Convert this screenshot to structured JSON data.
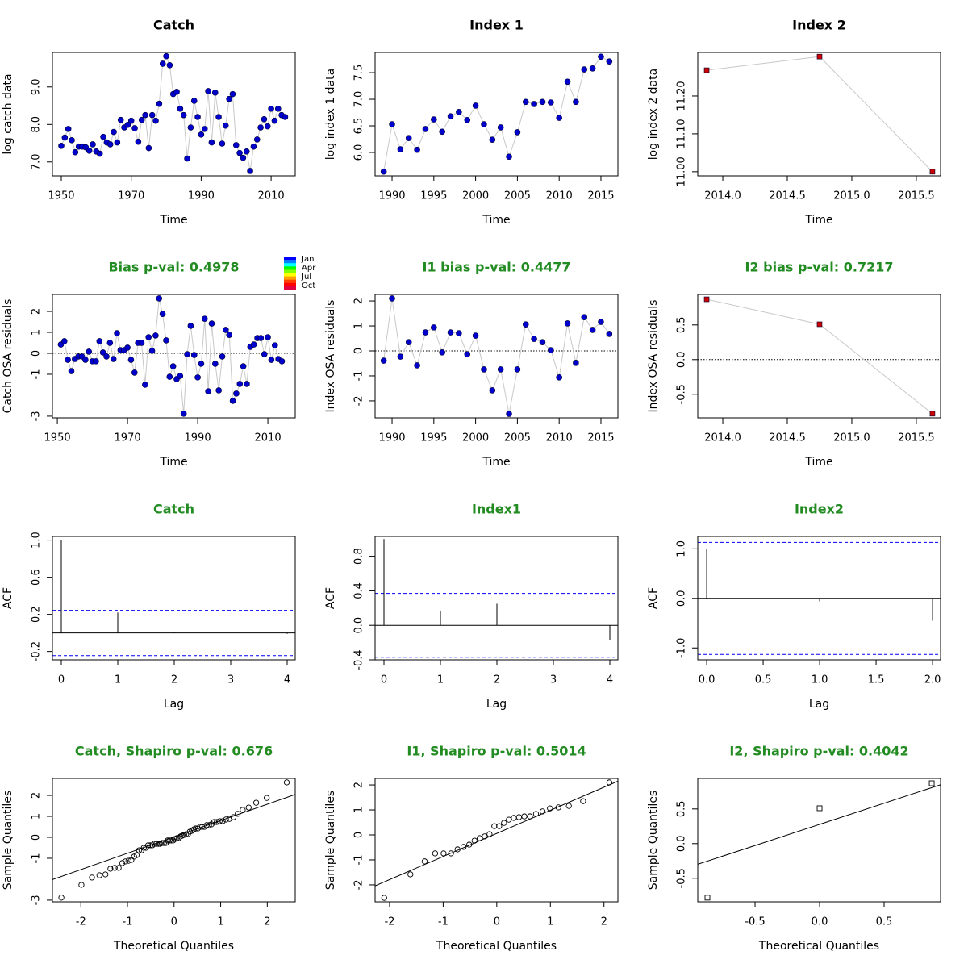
{
  "chart_data": [
    {
      "type": "line",
      "title": "Catch",
      "title_color": "#000000",
      "xlabel": "Time",
      "ylabel": "log catch data",
      "marker": "circle-filled",
      "color": "#0000cc",
      "line_color": "#c8c8c8",
      "x": [
        1950,
        1951,
        1952,
        1953,
        1954,
        1955,
        1956,
        1957,
        1958,
        1959,
        1960,
        1961,
        1962,
        1963,
        1964,
        1965,
        1966,
        1967,
        1968,
        1969,
        1970,
        1971,
        1972,
        1973,
        1974,
        1975,
        1976,
        1977,
        1978,
        1979,
        1980,
        1981,
        1982,
        1983,
        1984,
        1985,
        1986,
        1987,
        1988,
        1989,
        1990,
        1991,
        1992,
        1993,
        1994,
        1995,
        1996,
        1997,
        1998,
        1999,
        2000,
        2001,
        2002,
        2003,
        2004,
        2005,
        2006,
        2007,
        2008,
        2009,
        2010,
        2011,
        2012,
        2013,
        2014
      ],
      "values": [
        7.43,
        7.65,
        7.88,
        7.58,
        7.26,
        7.41,
        7.41,
        7.39,
        7.3,
        7.47,
        7.28,
        7.22,
        7.67,
        7.52,
        7.47,
        7.8,
        7.52,
        8.12,
        7.92,
        7.99,
        8.1,
        7.9,
        7.54,
        8.12,
        8.25,
        7.37,
        8.25,
        8.1,
        8.55,
        9.62,
        9.82,
        9.58,
        8.81,
        8.87,
        8.42,
        8.25,
        7.09,
        7.92,
        8.63,
        8.2,
        7.73,
        7.88,
        8.89,
        7.52,
        8.85,
        8.2,
        7.49,
        7.97,
        8.68,
        8.81,
        7.45,
        7.24,
        7.11,
        7.28,
        6.76,
        7.41,
        7.6,
        7.92,
        8.14,
        7.95,
        8.42,
        8.1,
        8.42,
        8.25,
        8.2
      ],
      "xlim": [
        1947.46,
        2016.9
      ],
      "ylim": [
        6.63,
        9.92
      ],
      "xticks": [
        1950,
        1970,
        1990,
        2010
      ],
      "yticks": [
        {
          "value": 7,
          "label": "7.0"
        },
        {
          "value": 8,
          "label": "8.0"
        },
        {
          "value": 9,
          "label": "9.0"
        }
      ]
    },
    {
      "type": "line",
      "title": "Index 1",
      "title_color": "#000000",
      "xlabel": "Time",
      "ylabel": "log index 1 data",
      "marker": "circle-filled",
      "color": "#0000cc",
      "line_color": "#c8c8c8",
      "x": [
        1989,
        1990,
        1991,
        1992,
        1993,
        1994,
        1995,
        1996,
        1997,
        1998,
        1999,
        2000,
        2001,
        2002,
        2003,
        2004,
        2005,
        2006,
        2007,
        2008,
        2009,
        2010,
        2011,
        2012,
        2013,
        2014,
        2015,
        2016
      ],
      "values": [
        5.64,
        6.53,
        6.06,
        6.27,
        6.05,
        6.44,
        6.62,
        6.39,
        6.68,
        6.76,
        6.61,
        6.88,
        6.53,
        6.24,
        6.47,
        5.92,
        6.38,
        6.95,
        6.91,
        6.95,
        6.94,
        6.65,
        7.33,
        6.95,
        7.56,
        7.58,
        7.8,
        7.71
      ],
      "xlim": [
        1987.97,
        2017.03
      ],
      "ylim": [
        5.56,
        7.88
      ],
      "xticks": [
        1990,
        1995,
        2000,
        2005,
        2010,
        2015
      ],
      "yticks": [
        {
          "value": 6,
          "label": "6.0"
        },
        {
          "value": 6.5,
          "label": "6.5"
        },
        {
          "value": 7,
          "label": "7.0"
        },
        {
          "value": 7.5,
          "label": "7.5"
        }
      ]
    },
    {
      "type": "line",
      "title": "Index 2",
      "title_color": "#000000",
      "xlabel": "Time",
      "ylabel": "log index 2 data",
      "marker": "square-filled",
      "color": "#cc0000",
      "line_color": "#c8c8c8",
      "x": [
        2013.875,
        2014.75,
        2015.625
      ],
      "values": [
        11.268,
        11.304,
        11.0
      ],
      "xlim": [
        2013.806,
        2015.688
      ],
      "ylim": [
        10.989,
        11.315
      ],
      "xticks": [
        {
          "value": 2014,
          "label": "2014.0"
        },
        {
          "value": 2014.5,
          "label": "2014.5"
        },
        {
          "value": 2015,
          "label": "2015.0"
        },
        {
          "value": 2015.5,
          "label": "2015.5"
        }
      ],
      "yticks": [
        {
          "value": 11,
          "label": "11.00"
        },
        {
          "value": 11.1,
          "label": "11.10"
        },
        {
          "value": 11.2,
          "label": "11.20"
        }
      ]
    },
    {
      "type": "line",
      "title": "Bias p-val: 0.4978",
      "title_color": "#228b22",
      "xlabel": "Time",
      "ylabel": "Catch OSA residuals",
      "marker": "circle-filled",
      "color": "#0000cc",
      "line_color": "#c8c8c8",
      "hline": 0,
      "colorbar": {
        "labels": [
          "Jan",
          "Apr",
          "Jul",
          "Oct"
        ],
        "colors": [
          "#0000ff",
          "#0080ff",
          "#00ffff",
          "#00ff00",
          "#80ff00",
          "#ffff00",
          "#ffa000",
          "#ff4000",
          "#ff0000",
          "#e00040"
        ]
      },
      "x": [
        1951,
        1952,
        1953,
        1954,
        1955,
        1956,
        1957,
        1958,
        1959,
        1960,
        1961,
        1962,
        1963,
        1964,
        1965,
        1966,
        1967,
        1968,
        1969,
        1970,
        1971,
        1972,
        1973,
        1974,
        1975,
        1976,
        1977,
        1978,
        1979,
        1980,
        1981,
        1982,
        1983,
        1984,
        1985,
        1986,
        1987,
        1988,
        1989,
        1990,
        1991,
        1992,
        1993,
        1994,
        1995,
        1996,
        1997,
        1998,
        1999,
        2000,
        2001,
        2002,
        2003,
        2004,
        2005,
        2006,
        2007,
        2008,
        2009,
        2010,
        2011,
        2012,
        2013,
        2014
      ],
      "values": [
        0.42,
        0.58,
        -0.31,
        -0.85,
        -0.27,
        -0.15,
        -0.15,
        -0.31,
        0.08,
        -0.38,
        -0.38,
        0.58,
        0.04,
        -0.15,
        0.5,
        -0.27,
        0.96,
        0.15,
        0.15,
        0.27,
        -0.31,
        -0.92,
        0.5,
        0.5,
        -1.5,
        0.77,
        0.12,
        0.85,
        2.62,
        1.88,
        0.62,
        -1.12,
        -0.62,
        -1.23,
        -1.08,
        -2.88,
        -0.04,
        1.31,
        -0.08,
        -1.15,
        -0.5,
        1.65,
        -1.81,
        1.42,
        -0.5,
        -1.77,
        -0.15,
        1.12,
        0.88,
        -2.27,
        -1.92,
        -1.46,
        -0.62,
        -1.46,
        0.31,
        0.42,
        0.73,
        0.73,
        -0.04,
        0.77,
        -0.31,
        0.38,
        -0.27,
        -0.38
      ],
      "xlim": [
        1948.6,
        2017.8
      ],
      "ylim": [
        -3.08,
        2.81
      ],
      "xticks": [
        1950,
        1970,
        1990,
        2010
      ],
      "yticks": [
        -3,
        -1,
        0,
        1,
        2
      ]
    },
    {
      "type": "line",
      "title": "I1 bias p-val: 0.4477",
      "title_color": "#228b22",
      "xlabel": "Time",
      "ylabel": "Index OSA residuals",
      "marker": "circle-filled",
      "color": "#0000cc",
      "line_color": "#c8c8c8",
      "hline": 0,
      "x": [
        1989,
        1990,
        1991,
        1992,
        1993,
        1994,
        1995,
        1996,
        1997,
        1998,
        1999,
        2000,
        2001,
        2002,
        2003,
        2004,
        2005,
        2006,
        2007,
        2008,
        2009,
        2010,
        2011,
        2012,
        2013,
        2014,
        2015,
        2016
      ],
      "values": [
        -0.39,
        2.1,
        -0.23,
        0.35,
        -0.58,
        0.74,
        0.94,
        -0.06,
        0.74,
        0.71,
        -0.13,
        0.61,
        -0.74,
        -1.58,
        -0.74,
        -2.52,
        -0.74,
        1.06,
        0.48,
        0.35,
        0.03,
        -1.06,
        1.1,
        -0.48,
        1.35,
        0.84,
        1.16,
        0.68
      ],
      "xlim": [
        1987.97,
        2017.03
      ],
      "ylim": [
        -2.68,
        2.26
      ],
      "xticks": [
        1990,
        1995,
        2000,
        2005,
        2010,
        2015
      ],
      "yticks": [
        -2,
        -1,
        0,
        1,
        2
      ]
    },
    {
      "type": "line",
      "title": "I2 bias p-val: 0.7217",
      "title_color": "#228b22",
      "xlabel": "Time",
      "ylabel": "Index OSA residuals",
      "marker": "square-filled",
      "color": "#cc0000",
      "line_color": "#c8c8c8",
      "hline": 0,
      "x": [
        2013.875,
        2014.75,
        2015.625
      ],
      "values": [
        0.87,
        0.51,
        -0.78
      ],
      "xlim": [
        2013.806,
        2015.688
      ],
      "ylim": [
        -0.84,
        0.94
      ],
      "xticks": [
        {
          "value": 2014,
          "label": "2014.0"
        },
        {
          "value": 2014.5,
          "label": "2014.5"
        },
        {
          "value": 2015,
          "label": "2015.0"
        },
        {
          "value": 2015.5,
          "label": "2015.5"
        }
      ],
      "yticks": [
        {
          "value": -0.5,
          "label": "-0.5"
        },
        {
          "value": 0,
          "label": "0.0"
        },
        {
          "value": 0.5,
          "label": "0.5"
        }
      ]
    },
    {
      "type": "acf",
      "title": "Catch",
      "title_color": "#228b22",
      "xlabel": "Lag",
      "ylabel": "ACF",
      "color": "#000000",
      "ci": 0.244,
      "ci_color": "#0000ff",
      "x": [
        0,
        1,
        2,
        3,
        4
      ],
      "values": [
        1.0,
        0.22,
        0.005,
        0.0,
        -0.01
      ],
      "xlim": [
        -0.157,
        4.143
      ],
      "ylim": [
        -0.29,
        1.04
      ],
      "xticks": [
        0,
        1,
        2,
        3,
        4
      ],
      "yticks": [
        {
          "value": -0.2,
          "label": "-0.2"
        },
        {
          "value": 0.2,
          "label": "0.2"
        },
        {
          "value": 0.6,
          "label": "0.6"
        },
        {
          "value": 1.0,
          "label": "1.0"
        }
      ]
    },
    {
      "type": "acf",
      "title": "Index1",
      "title_color": "#228b22",
      "xlabel": "Lag",
      "ylabel": "ACF",
      "color": "#000000",
      "ci": 0.37,
      "ci_color": "#0000ff",
      "x": [
        0,
        1,
        2,
        3,
        4
      ],
      "values": [
        1.0,
        0.17,
        0.25,
        0.0,
        -0.17
      ],
      "xlim": [
        -0.157,
        4.143
      ],
      "ylim": [
        -0.4,
        1.03
      ],
      "xticks": [
        0,
        1,
        2,
        3,
        4
      ],
      "yticks": [
        {
          "value": -0.4,
          "label": "-0.4"
        },
        {
          "value": 0,
          "label": "0.0"
        },
        {
          "value": 0.4,
          "label": "0.4"
        },
        {
          "value": 0.8,
          "label": "0.8"
        }
      ]
    },
    {
      "type": "acf",
      "title": "Index2",
      "title_color": "#228b22",
      "xlabel": "Lag",
      "ylabel": "ACF",
      "color": "#000000",
      "ci": 1.13,
      "ci_color": "#0000ff",
      "x": [
        0,
        1,
        2
      ],
      "values": [
        1.0,
        -0.06,
        -0.45
      ],
      "xlim": [
        -0.079,
        2.071
      ],
      "ylim": [
        -1.24,
        1.25
      ],
      "xticks": [
        {
          "value": 0,
          "label": "0.0"
        },
        {
          "value": 0.5,
          "label": "0.5"
        },
        {
          "value": 1,
          "label": "1.0"
        },
        {
          "value": 1.5,
          "label": "1.5"
        },
        {
          "value": 2,
          "label": "2.0"
        }
      ],
      "yticks": [
        {
          "value": -1,
          "label": "-1.0"
        },
        {
          "value": 0,
          "label": "0.0"
        },
        {
          "value": 1,
          "label": "1.0"
        }
      ]
    },
    {
      "type": "scatter",
      "title": "Catch, Shapiro p-val: 0.676",
      "title_color": "#228b22",
      "xlabel": "Theoretical Quantiles",
      "ylabel": "Sample Quantiles",
      "marker": "circle-open",
      "color": "#000000",
      "abline": {
        "intercept": 0.02,
        "slope": 0.78
      },
      "x": [
        -2.418,
        -1.988,
        -1.762,
        -1.601,
        -1.473,
        -1.366,
        -1.273,
        -1.189,
        -1.113,
        -1.043,
        -0.978,
        -0.916,
        -0.858,
        -0.803,
        -0.75,
        -0.699,
        -0.65,
        -0.602,
        -0.556,
        -0.511,
        -0.467,
        -0.424,
        -0.381,
        -0.339,
        -0.298,
        -0.258,
        -0.217,
        -0.177,
        -0.137,
        -0.098,
        -0.059,
        -0.02,
        0.02,
        0.059,
        0.098,
        0.137,
        0.177,
        0.217,
        0.258,
        0.298,
        0.339,
        0.381,
        0.424,
        0.467,
        0.511,
        0.556,
        0.602,
        0.65,
        0.699,
        0.75,
        0.803,
        0.858,
        0.916,
        0.978,
        1.043,
        1.113,
        1.189,
        1.273,
        1.366,
        1.473,
        1.601,
        1.762,
        1.988,
        2.418
      ],
      "values": [
        -2.88,
        -2.27,
        -1.92,
        -1.81,
        -1.77,
        -1.5,
        -1.46,
        -1.46,
        -1.23,
        -1.15,
        -1.12,
        -1.08,
        -0.92,
        -0.85,
        -0.62,
        -0.62,
        -0.5,
        -0.5,
        -0.38,
        -0.38,
        -0.38,
        -0.31,
        -0.31,
        -0.31,
        -0.31,
        -0.27,
        -0.27,
        -0.27,
        -0.15,
        -0.15,
        -0.15,
        -0.15,
        -0.08,
        -0.04,
        -0.04,
        0.04,
        0.08,
        0.12,
        0.15,
        0.15,
        0.27,
        0.31,
        0.38,
        0.42,
        0.42,
        0.5,
        0.5,
        0.5,
        0.58,
        0.58,
        0.62,
        0.73,
        0.73,
        0.77,
        0.77,
        0.85,
        0.88,
        0.96,
        1.12,
        1.31,
        1.42,
        1.65,
        1.88,
        2.62
      ],
      "xlim": [
        -2.61,
        2.6
      ],
      "ylim": [
        -3.08,
        2.81
      ],
      "xticks": [
        -2,
        -1,
        0,
        1,
        2
      ],
      "yticks": [
        -3,
        -1,
        0,
        1,
        2
      ]
    },
    {
      "type": "scatter",
      "title": "I1, Shapiro p-val: 0.5014",
      "title_color": "#228b22",
      "xlabel": "Theoretical Quantiles",
      "ylabel": "Sample Quantiles",
      "marker": "circle-open",
      "color": "#000000",
      "abline": {
        "intercept": 0.06,
        "slope": 0.925
      },
      "x": [
        -2.1,
        -1.611,
        -1.345,
        -1.15,
        -0.992,
        -0.854,
        -0.732,
        -0.619,
        -0.514,
        -0.415,
        -0.319,
        -0.225,
        -0.135,
        -0.045,
        0.045,
        0.135,
        0.225,
        0.319,
        0.415,
        0.514,
        0.619,
        0.732,
        0.854,
        0.992,
        1.15,
        1.345,
        1.611,
        2.1
      ],
      "values": [
        -2.52,
        -1.58,
        -1.06,
        -0.74,
        -0.74,
        -0.74,
        -0.58,
        -0.48,
        -0.39,
        -0.23,
        -0.13,
        -0.06,
        0.03,
        0.35,
        0.35,
        0.48,
        0.61,
        0.68,
        0.71,
        0.74,
        0.74,
        0.84,
        0.94,
        1.06,
        1.1,
        1.16,
        1.35,
        2.1
      ],
      "xlim": [
        -2.27,
        2.26
      ],
      "ylim": [
        -2.68,
        2.26
      ],
      "xticks": [
        -2,
        -1,
        0,
        1,
        2
      ],
      "yticks": [
        -2,
        -1,
        0,
        1,
        2
      ]
    },
    {
      "type": "scatter",
      "title": "I2, Shapiro p-val: 0.4042",
      "title_color": "#228b22",
      "xlabel": "Theoretical Quantiles",
      "ylabel": "Sample Quantiles",
      "marker": "square-open",
      "color": "#000000",
      "abline": {
        "intercept": 0.2775,
        "slope": 0.61
      },
      "x": [
        -0.869,
        0.0,
        0.869
      ],
      "values": [
        -0.78,
        0.51,
        0.87
      ],
      "xlim": [
        -0.944,
        0.9375
      ],
      "ylim": [
        -0.84,
        0.94
      ],
      "xticks": [
        {
          "value": -0.5,
          "label": "-0.5"
        },
        {
          "value": 0,
          "label": "0.0"
        },
        {
          "value": 0.5,
          "label": "0.5"
        }
      ],
      "yticks": [
        {
          "value": -0.5,
          "label": "-0.5"
        },
        {
          "value": 0,
          "label": "0.0"
        },
        {
          "value": 0.5,
          "label": "0.5"
        }
      ]
    }
  ]
}
